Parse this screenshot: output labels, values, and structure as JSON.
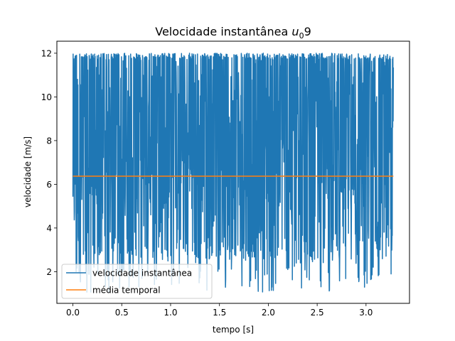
{
  "chart_data": {
    "type": "line",
    "title": "Velocidade instantânea ",
    "title_math": {
      "base": "u",
      "subscript": "0",
      "suffix": "9"
    },
    "xlabel": "tempo [s]",
    "ylabel": "velocidade [m/s]",
    "xlim": [
      -0.164,
      3.445
    ],
    "ylim": [
      0.55,
      12.55
    ],
    "xticks": [
      0.0,
      0.5,
      1.0,
      1.5,
      2.0,
      2.5,
      3.0
    ],
    "xtick_labels": [
      "0.0",
      "0.5",
      "1.0",
      "1.5",
      "2.0",
      "2.5",
      "3.0"
    ],
    "yticks": [
      2,
      4,
      6,
      8,
      10,
      12
    ],
    "ytick_labels": [
      "2",
      "4",
      "6",
      "8",
      "10",
      "12"
    ],
    "grid": false,
    "legend_position": "lower-left",
    "series": [
      {
        "name": "velocidade instantânea",
        "color": "#1f77b4",
        "x_range": [
          0.0,
          3.28
        ],
        "value_range": [
          1.05,
          12.0
        ],
        "approx_points": 1400,
        "description_note": "dense fluctuating signal"
      },
      {
        "name": "média temporal",
        "color": "#ff7f0e",
        "x": [
          0.0,
          3.28
        ],
        "values": [
          6.37,
          6.37
        ]
      }
    ]
  }
}
